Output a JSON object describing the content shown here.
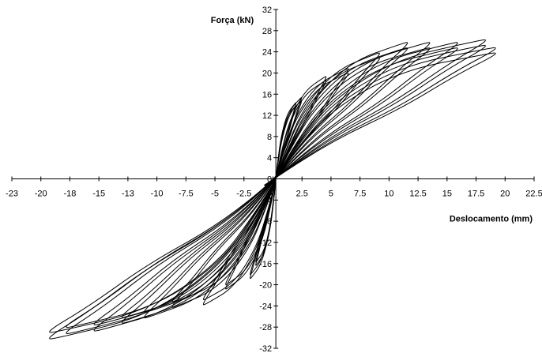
{
  "chart_data": {
    "type": "line",
    "title": "",
    "xlabel": "Deslocamento (mm)",
    "ylabel": "Força (kN)",
    "xlim": [
      -23,
      22.5
    ],
    "ylim": [
      -32,
      32
    ],
    "x_ticks": [
      "-23",
      "-20",
      "-18",
      "-15",
      "-13",
      "-10",
      "-7.5",
      "-5",
      "-2.5",
      "0",
      "2.5",
      "5",
      "7.5",
      "10",
      "12.5",
      "15",
      "17.5",
      "20",
      "22.5"
    ],
    "y_ticks": [
      "32",
      "28",
      "24",
      "20",
      "16",
      "12",
      "8",
      "4",
      "0",
      "-4",
      "-8",
      "-12",
      "-16",
      "-20",
      "-24",
      "-28",
      "-32"
    ],
    "grid": false,
    "legend": "none",
    "line_color": "#000000",
    "series": [
      {
        "loop_peaks": {
          "pos": [
            1.8,
            14.5
          ],
          "neg": [
            -1.8,
            -16.5
          ]
        }
      },
      {
        "loop_peaks": {
          "pos": [
            2.3,
            15.5
          ],
          "neg": [
            -2.3,
            -19.0
          ]
        }
      },
      {
        "loop_peaks": {
          "pos": [
            4.5,
            19.5
          ],
          "neg": [
            -4.5,
            -21.0
          ]
        }
      },
      {
        "loop_peaks": {
          "pos": [
            6.5,
            21.0
          ],
          "neg": [
            -6.5,
            -24.0
          ]
        }
      },
      {
        "loop_peaks": {
          "pos": [
            9.3,
            24.0
          ],
          "neg": [
            -9.3,
            -24.5
          ]
        }
      },
      {
        "loop_peaks": {
          "pos": [
            11.8,
            26.0
          ],
          "neg": [
            -11.8,
            -26.5
          ]
        }
      },
      {
        "loop_peaks": {
          "pos": [
            13.8,
            26.0
          ],
          "neg": [
            -13.8,
            -27.5
          ]
        }
      },
      {
        "loop_peaks": {
          "pos": [
            16.3,
            26.0
          ],
          "neg": [
            -16.3,
            -29.0
          ]
        }
      },
      {
        "loop_peaks": {
          "pos": [
            18.8,
            26.5
          ],
          "neg": [
            -18.8,
            -29.5
          ]
        }
      },
      {
        "loop_peaks": {
          "pos": [
            19.7,
            25.0
          ],
          "neg": [
            -20.3,
            -30.5
          ]
        }
      }
    ]
  }
}
